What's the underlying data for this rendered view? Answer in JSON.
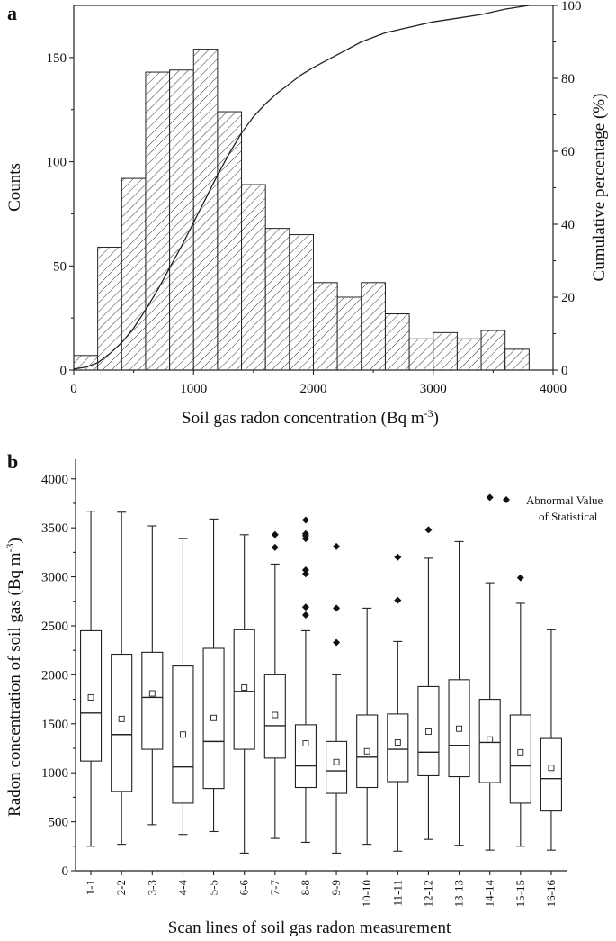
{
  "chart_data": [
    {
      "panel": "a",
      "type": "bar",
      "title": "",
      "xlabel": "Soil gas radon concentration (Bq m-3)",
      "xlabel_main": "Soil gas radon concentration (Bq m",
      "xlabel_sup": "-3",
      "xlabel_end": ")",
      "ylabel": "Counts",
      "y2label": "Cumulative percentage (%)",
      "xlim": [
        0,
        4000
      ],
      "ylim": [
        0,
        175
      ],
      "y2lim": [
        0,
        100
      ],
      "xticks": [
        0,
        1000,
        2000,
        3000,
        4000
      ],
      "yticks": [
        0,
        50,
        100,
        150
      ],
      "y2ticks": [
        0,
        20,
        40,
        60,
        80,
        100
      ],
      "bin_width": 200,
      "bin_starts": [
        0,
        200,
        400,
        600,
        800,
        1000,
        1200,
        1400,
        1600,
        1800,
        2000,
        2200,
        2400,
        2600,
        2800,
        3000,
        3200,
        3400,
        3600
      ],
      "values": [
        7,
        59,
        92,
        143,
        144,
        154,
        124,
        89,
        68,
        65,
        42,
        35,
        42,
        27,
        15,
        18,
        15,
        19,
        10
      ],
      "cumulative": {
        "x": [
          0,
          100,
          200,
          300,
          400,
          500,
          600,
          700,
          800,
          900,
          1000,
          1100,
          1200,
          1300,
          1400,
          1500,
          1600,
          1700,
          1800,
          1900,
          2000,
          2200,
          2400,
          2600,
          2800,
          3000,
          3200,
          3400,
          3600,
          3800
        ],
        "y": [
          0.3,
          0.8,
          2,
          4.5,
          7.5,
          11.5,
          16.5,
          22,
          28,
          34,
          40.5,
          47,
          53.5,
          59.5,
          65,
          69.5,
          73,
          76,
          78.5,
          81,
          83,
          86.5,
          90,
          92.5,
          94,
          95.5,
          96.5,
          97.5,
          99,
          100
        ]
      }
    },
    {
      "panel": "b",
      "type": "box",
      "title": "",
      "xlabel": "Scan lines of soil gas radon measurement",
      "ylabel": "Radon concentration of soil gas (Bq m-3)",
      "ylabel_main": "Radon concentration of soil gas (Bq m",
      "ylabel_sup": "-3",
      "ylabel_end": ")",
      "ylim": [
        0,
        4200
      ],
      "yticks": [
        0,
        500,
        1000,
        1500,
        2000,
        2500,
        3000,
        3500,
        4000
      ],
      "categories": [
        "1-1",
        "2-2",
        "3-3",
        "4-4",
        "5-5",
        "6-6",
        "7-7",
        "8-8",
        "9-9",
        "10-10",
        "11-11",
        "12-12",
        "13-13",
        "14-14",
        "15-15",
        "16-16"
      ],
      "min": [
        250,
        270,
        470,
        370,
        400,
        180,
        330,
        290,
        180,
        270,
        200,
        320,
        260,
        210,
        250,
        210
      ],
      "q1": [
        1120,
        810,
        1240,
        690,
        840,
        1240,
        1150,
        850,
        790,
        850,
        910,
        970,
        960,
        900,
        690,
        610
      ],
      "median": [
        1610,
        1390,
        1770,
        1060,
        1320,
        1830,
        1480,
        1070,
        1020,
        1160,
        1240,
        1210,
        1280,
        1310,
        1070,
        940
      ],
      "q3": [
        2450,
        2210,
        2230,
        2090,
        2270,
        2460,
        2000,
        1490,
        1320,
        1590,
        1600,
        1880,
        1950,
        1750,
        1590,
        1350
      ],
      "max": [
        3670,
        3660,
        3520,
        3390,
        3590,
        3430,
        3130,
        2450,
        2000,
        2680,
        2340,
        3190,
        3360,
        2940,
        2730,
        2460
      ],
      "mean": [
        1770,
        1550,
        1810,
        1390,
        1560,
        1870,
        1590,
        1300,
        1110,
        1220,
        1310,
        1420,
        1450,
        1340,
        1210,
        1050
      ],
      "outliers": [
        [],
        [],
        [],
        [],
        [],
        [],
        [
          3300,
          3430
        ],
        [
          2610,
          2690,
          3030,
          3070,
          3390,
          3420,
          3440,
          3580
        ],
        [
          2330,
          2680,
          3310
        ],
        [],
        [
          2760,
          3200
        ],
        [
          3480
        ],
        [],
        [
          3810
        ],
        [
          2990
        ],
        []
      ],
      "legend": {
        "line1": "Abnormal Value",
        "line2": "of Statistical"
      }
    }
  ]
}
